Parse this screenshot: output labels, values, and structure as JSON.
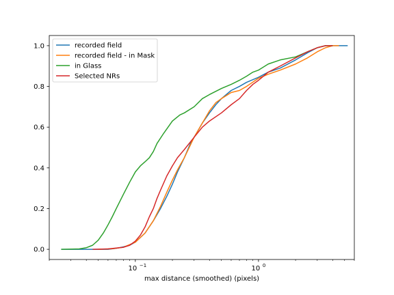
{
  "chart_data": {
    "type": "line",
    "xscale": "log",
    "xlim": [
      0.02,
      6.0
    ],
    "ylim": [
      -0.05,
      1.05
    ],
    "xlabel": "max distance (smoothed) (pixels)",
    "ylabel": "",
    "title": "",
    "grid": false,
    "legend_position": "top-left",
    "x_ticks": [
      {
        "value": 0.1,
        "base": "10",
        "exp": "−1"
      },
      {
        "value": 1.0,
        "base": "10",
        "exp": "0"
      }
    ],
    "y_ticks": [
      {
        "value": 0.0,
        "label": "0.0"
      },
      {
        "value": 0.2,
        "label": "0.2"
      },
      {
        "value": 0.4,
        "label": "0.4"
      },
      {
        "value": 0.6,
        "label": "0.6"
      },
      {
        "value": 0.8,
        "label": "0.8"
      },
      {
        "value": 1.0,
        "label": "1.0"
      }
    ],
    "series": [
      {
        "name": "recorded field",
        "color": "#1f77b4",
        "points": [
          [
            0.025,
            0.0
          ],
          [
            0.06,
            0.0
          ],
          [
            0.07,
            0.005
          ],
          [
            0.08,
            0.012
          ],
          [
            0.09,
            0.02
          ],
          [
            0.1,
            0.035
          ],
          [
            0.12,
            0.08
          ],
          [
            0.14,
            0.14
          ],
          [
            0.16,
            0.2
          ],
          [
            0.18,
            0.26
          ],
          [
            0.2,
            0.32
          ],
          [
            0.22,
            0.38
          ],
          [
            0.25,
            0.45
          ],
          [
            0.28,
            0.52
          ],
          [
            0.3,
            0.55
          ],
          [
            0.35,
            0.62
          ],
          [
            0.4,
            0.67
          ],
          [
            0.45,
            0.71
          ],
          [
            0.5,
            0.74
          ],
          [
            0.6,
            0.78
          ],
          [
            0.7,
            0.8
          ],
          [
            0.8,
            0.82
          ],
          [
            1.0,
            0.845
          ],
          [
            1.2,
            0.87
          ],
          [
            1.5,
            0.89
          ],
          [
            2.0,
            0.93
          ],
          [
            2.5,
            0.965
          ],
          [
            3.0,
            0.99
          ],
          [
            3.5,
            1.0
          ],
          [
            5.3,
            1.0
          ]
        ]
      },
      {
        "name": "recorded field - in Mask",
        "color": "#ff7f0e",
        "points": [
          [
            0.05,
            0.0
          ],
          [
            0.065,
            0.003
          ],
          [
            0.08,
            0.01
          ],
          [
            0.1,
            0.035
          ],
          [
            0.12,
            0.08
          ],
          [
            0.14,
            0.14
          ],
          [
            0.16,
            0.21
          ],
          [
            0.18,
            0.28
          ],
          [
            0.2,
            0.34
          ],
          [
            0.22,
            0.39
          ],
          [
            0.25,
            0.45
          ],
          [
            0.3,
            0.55
          ],
          [
            0.35,
            0.62
          ],
          [
            0.4,
            0.68
          ],
          [
            0.45,
            0.72
          ],
          [
            0.5,
            0.74
          ],
          [
            0.6,
            0.77
          ],
          [
            0.7,
            0.78
          ],
          [
            0.8,
            0.8
          ],
          [
            1.0,
            0.84
          ],
          [
            1.2,
            0.86
          ],
          [
            1.5,
            0.88
          ],
          [
            2.0,
            0.91
          ],
          [
            2.5,
            0.94
          ],
          [
            3.0,
            0.97
          ],
          [
            3.5,
            0.99
          ],
          [
            4.0,
            1.0
          ],
          [
            4.5,
            1.0
          ]
        ]
      },
      {
        "name": "in Glass",
        "color": "#2ca02c",
        "points": [
          [
            0.025,
            0.0
          ],
          [
            0.035,
            0.002
          ],
          [
            0.04,
            0.008
          ],
          [
            0.045,
            0.02
          ],
          [
            0.05,
            0.045
          ],
          [
            0.055,
            0.08
          ],
          [
            0.06,
            0.12
          ],
          [
            0.065,
            0.16
          ],
          [
            0.07,
            0.2
          ],
          [
            0.08,
            0.27
          ],
          [
            0.09,
            0.33
          ],
          [
            0.1,
            0.38
          ],
          [
            0.11,
            0.41
          ],
          [
            0.12,
            0.43
          ],
          [
            0.13,
            0.45
          ],
          [
            0.14,
            0.48
          ],
          [
            0.15,
            0.52
          ],
          [
            0.17,
            0.57
          ],
          [
            0.2,
            0.63
          ],
          [
            0.23,
            0.66
          ],
          [
            0.25,
            0.67
          ],
          [
            0.3,
            0.7
          ],
          [
            0.35,
            0.74
          ],
          [
            0.4,
            0.76
          ],
          [
            0.5,
            0.79
          ],
          [
            0.6,
            0.81
          ],
          [
            0.7,
            0.83
          ],
          [
            0.8,
            0.85
          ],
          [
            0.9,
            0.87
          ],
          [
            1.0,
            0.88
          ],
          [
            1.2,
            0.91
          ],
          [
            1.5,
            0.93
          ],
          [
            2.0,
            0.945
          ],
          [
            2.5,
            0.97
          ],
          [
            3.0,
            0.99
          ],
          [
            3.5,
            1.0
          ],
          [
            4.0,
            1.0
          ]
        ]
      },
      {
        "name": "Selected NRs",
        "color": "#d62728",
        "points": [
          [
            0.045,
            0.0
          ],
          [
            0.06,
            0.002
          ],
          [
            0.08,
            0.01
          ],
          [
            0.09,
            0.02
          ],
          [
            0.1,
            0.04
          ],
          [
            0.11,
            0.07
          ],
          [
            0.12,
            0.11
          ],
          [
            0.13,
            0.16
          ],
          [
            0.14,
            0.2
          ],
          [
            0.15,
            0.25
          ],
          [
            0.16,
            0.29
          ],
          [
            0.18,
            0.36
          ],
          [
            0.2,
            0.41
          ],
          [
            0.22,
            0.45
          ],
          [
            0.25,
            0.49
          ],
          [
            0.3,
            0.55
          ],
          [
            0.35,
            0.6
          ],
          [
            0.4,
            0.63
          ],
          [
            0.5,
            0.67
          ],
          [
            0.6,
            0.71
          ],
          [
            0.7,
            0.74
          ],
          [
            0.8,
            0.78
          ],
          [
            0.9,
            0.81
          ],
          [
            1.0,
            0.83
          ],
          [
            1.2,
            0.87
          ],
          [
            1.5,
            0.9
          ],
          [
            2.0,
            0.94
          ],
          [
            2.5,
            0.97
          ],
          [
            3.0,
            0.99
          ],
          [
            3.5,
            1.0
          ],
          [
            4.0,
            1.0
          ]
        ]
      }
    ]
  }
}
